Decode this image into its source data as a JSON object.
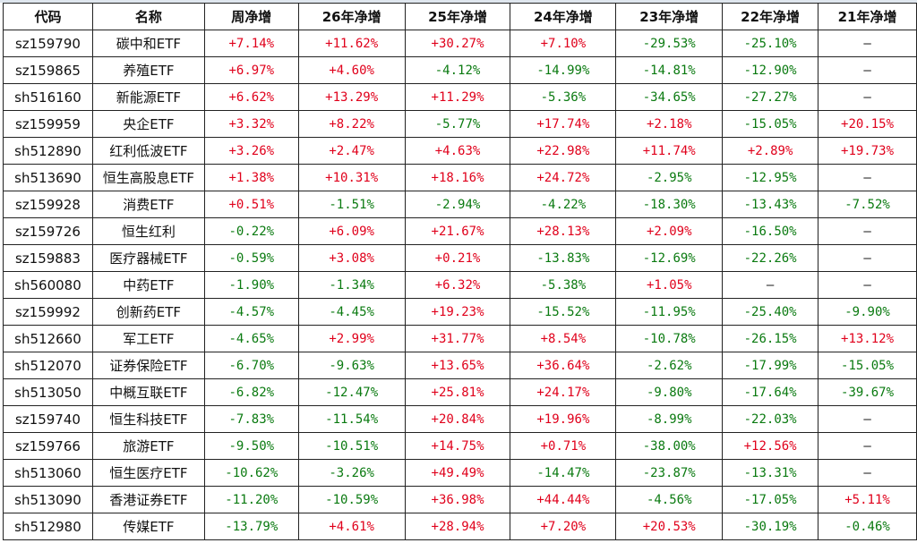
{
  "colors": {
    "positive": "#e0001b",
    "negative": "#0a7a10",
    "neutral": "#111111"
  },
  "headers": [
    "代码",
    "名称",
    "周净增",
    "26年净增",
    "25年净增",
    "24年净增",
    "23年净增",
    "22年净增",
    "21年净增"
  ],
  "rows": [
    [
      "sz159790",
      "碳中和ETF",
      "+7.14%",
      "+11.62%",
      "+30.27%",
      "+7.10%",
      "-29.53%",
      "-25.10%",
      "—"
    ],
    [
      "sz159865",
      "养殖ETF",
      "+6.97%",
      "+4.60%",
      "-4.12%",
      "-14.99%",
      "-14.81%",
      "-12.90%",
      "—"
    ],
    [
      "sh516160",
      "新能源ETF",
      "+6.62%",
      "+13.29%",
      "+11.29%",
      "-5.36%",
      "-34.65%",
      "-27.27%",
      "—"
    ],
    [
      "sz159959",
      "央企ETF",
      "+3.32%",
      "+8.22%",
      "-5.77%",
      "+17.74%",
      "+2.18%",
      "-15.05%",
      "+20.15%"
    ],
    [
      "sh512890",
      "红利低波ETF",
      "+3.26%",
      "+2.47%",
      "+4.63%",
      "+22.98%",
      "+11.74%",
      "+2.89%",
      "+19.73%"
    ],
    [
      "sh513690",
      "恒生高股息ETF",
      "+1.38%",
      "+10.31%",
      "+18.16%",
      "+24.72%",
      "-2.95%",
      "-12.95%",
      "—"
    ],
    [
      "sz159928",
      "消费ETF",
      "+0.51%",
      "-1.51%",
      "-2.94%",
      "-4.22%",
      "-18.30%",
      "-13.43%",
      "-7.52%"
    ],
    [
      "sz159726",
      "恒生红利",
      "-0.22%",
      "+6.09%",
      "+21.67%",
      "+28.13%",
      "+2.09%",
      "-16.50%",
      "—"
    ],
    [
      "sz159883",
      "医疗器械ETF",
      "-0.59%",
      "+3.08%",
      "+0.21%",
      "-13.83%",
      "-12.69%",
      "-22.26%",
      "—"
    ],
    [
      "sh560080",
      "中药ETF",
      "-1.90%",
      "-1.34%",
      "+6.32%",
      "-5.38%",
      "+1.05%",
      "—",
      "—"
    ],
    [
      "sz159992",
      "创新药ETF",
      "-4.57%",
      "-4.45%",
      "+19.23%",
      "-15.52%",
      "-11.95%",
      "-25.40%",
      "-9.90%"
    ],
    [
      "sh512660",
      "军工ETF",
      "-4.65%",
      "+2.99%",
      "+31.77%",
      "+8.54%",
      "-10.78%",
      "-26.15%",
      "+13.12%"
    ],
    [
      "sh512070",
      "证券保险ETF",
      "-6.70%",
      "-9.63%",
      "+13.65%",
      "+36.64%",
      "-2.62%",
      "-17.99%",
      "-15.05%"
    ],
    [
      "sh513050",
      "中概互联ETF",
      "-6.82%",
      "-12.47%",
      "+25.81%",
      "+24.17%",
      "-9.80%",
      "-17.64%",
      "-39.67%"
    ],
    [
      "sz159740",
      "恒生科技ETF",
      "-7.83%",
      "-11.54%",
      "+20.84%",
      "+19.96%",
      "-8.99%",
      "-22.03%",
      "—"
    ],
    [
      "sz159766",
      "旅游ETF",
      "-9.50%",
      "-10.51%",
      "+14.75%",
      "+0.71%",
      "-38.00%",
      "+12.56%",
      "—"
    ],
    [
      "sh513060",
      "恒生医疗ETF",
      "-10.62%",
      "-3.26%",
      "+49.49%",
      "-14.47%",
      "-23.87%",
      "-13.31%",
      "—"
    ],
    [
      "sh513090",
      "香港证券ETF",
      "-11.20%",
      "-10.59%",
      "+36.98%",
      "+44.44%",
      "-4.56%",
      "-17.05%",
      "+5.11%"
    ],
    [
      "sh512980",
      "传媒ETF",
      "-13.79%",
      "+4.61%",
      "+28.94%",
      "+7.20%",
      "+20.53%",
      "-30.19%",
      "-0.46%"
    ]
  ]
}
